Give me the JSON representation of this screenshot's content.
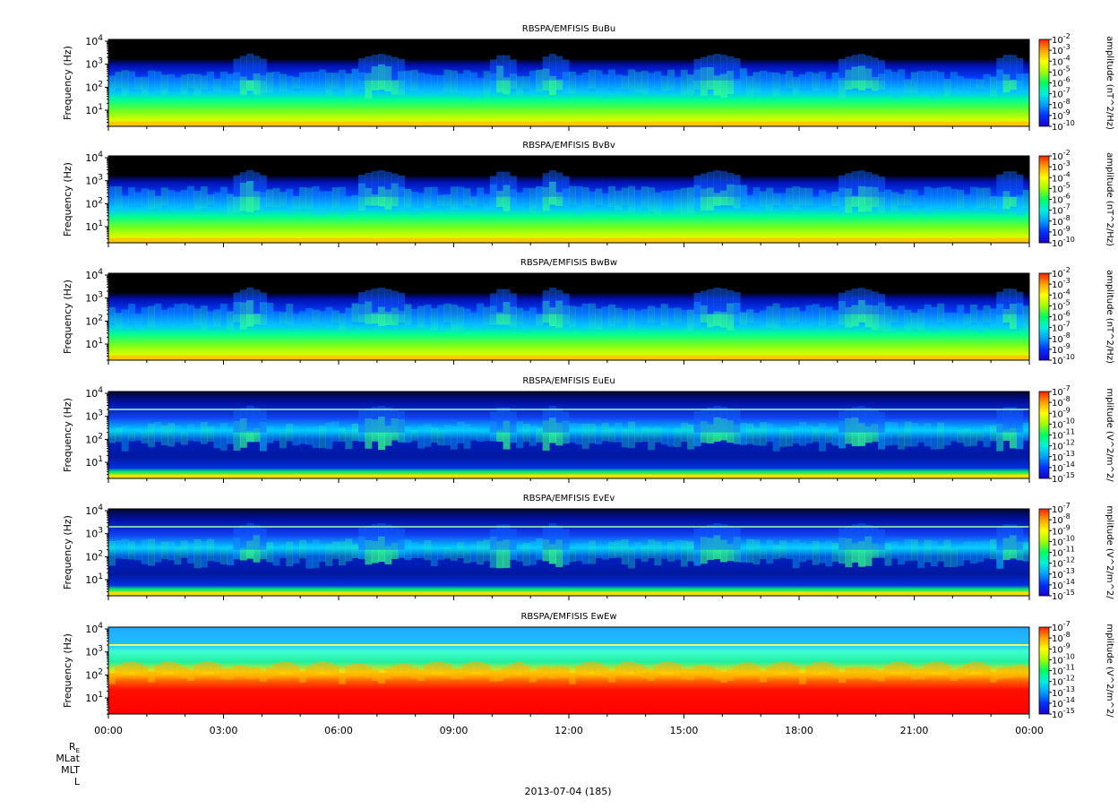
{
  "figure": {
    "date_label": "2013-07-04 (185)",
    "ephemeris_labels": [
      "R_E",
      "MLat",
      "MLT",
      "L"
    ],
    "time_ticks": [
      "00:00",
      "03:00",
      "06:00",
      "09:00",
      "12:00",
      "15:00",
      "18:00",
      "21:00",
      "00:00"
    ]
  },
  "colors": {
    "colormap": [
      "#1a00c8",
      "#0030ff",
      "#00a0ff",
      "#00f0e0",
      "#00ff60",
      "#a0ff00",
      "#ffff00",
      "#ffa000",
      "#ff2000"
    ],
    "background_no_data": "#000000"
  },
  "chart_data": [
    {
      "type": "heatmap",
      "title": "RBSPA/EMFISIS  BuBu",
      "ylabel": "Frequency (Hz)",
      "ylim": [
        2,
        12000
      ],
      "yscale": "log",
      "yticks": [
        10,
        100,
        1000,
        10000
      ],
      "ytick_labels": [
        "10^1",
        "10^2",
        "10^3",
        "10^4"
      ],
      "xlim": [
        "00:00",
        "24:00"
      ],
      "colorbar": {
        "label": "amplitude (nT^2/Hz)",
        "range": [
          -10,
          -2
        ],
        "tick_labels": [
          "10^-2",
          "10^-3",
          "10^-4",
          "10^-5",
          "10^-6",
          "10^-7",
          "10^-8",
          "10^-9",
          "10^-10"
        ]
      }
    },
    {
      "type": "heatmap",
      "title": "RBSPA/EMFISIS  BvBv",
      "ylabel": "Frequency (Hz)",
      "ylim": [
        2,
        12000
      ],
      "yscale": "log",
      "yticks": [
        10,
        100,
        1000,
        10000
      ],
      "ytick_labels": [
        "10^1",
        "10^2",
        "10^3",
        "10^4"
      ],
      "xlim": [
        "00:00",
        "24:00"
      ],
      "colorbar": {
        "label": "amplitude (nT^2/Hz)",
        "range": [
          -10,
          -2
        ],
        "tick_labels": [
          "10^-2",
          "10^-3",
          "10^-4",
          "10^-5",
          "10^-6",
          "10^-7",
          "10^-8",
          "10^-9",
          "10^-10"
        ]
      }
    },
    {
      "type": "heatmap",
      "title": "RBSPA/EMFISIS  BwBw",
      "ylabel": "Frequency (Hz)",
      "ylim": [
        2,
        12000
      ],
      "yscale": "log",
      "yticks": [
        10,
        100,
        1000,
        10000
      ],
      "ytick_labels": [
        "10^1",
        "10^2",
        "10^3",
        "10^4"
      ],
      "xlim": [
        "00:00",
        "24:00"
      ],
      "colorbar": {
        "label": "amplitude (nT^2/Hz)",
        "range": [
          -10,
          -2
        ],
        "tick_labels": [
          "10^-2",
          "10^-3",
          "10^-4",
          "10^-5",
          "10^-6",
          "10^-7",
          "10^-8",
          "10^-9",
          "10^-10"
        ]
      }
    },
    {
      "type": "heatmap",
      "title": "RBSPA/EMFISIS  EuEu",
      "ylabel": "Frequency (Hz)",
      "ylim": [
        2,
        12000
      ],
      "yscale": "log",
      "yticks": [
        10,
        100,
        1000,
        10000
      ],
      "ytick_labels": [
        "10^1",
        "10^2",
        "10^3",
        "10^4"
      ],
      "xlim": [
        "00:00",
        "24:00"
      ],
      "colorbar": {
        "label": "mplitude (V^2/m^2/",
        "range": [
          -15,
          -7
        ],
        "tick_labels": [
          "10^-7",
          "10^-8",
          "10^-9",
          "10^-10",
          "10^-11",
          "10^-12",
          "10^-13",
          "10^-14",
          "10^-15"
        ]
      }
    },
    {
      "type": "heatmap",
      "title": "RBSPA/EMFISIS  EvEv",
      "ylabel": "Frequency (Hz)",
      "ylim": [
        2,
        12000
      ],
      "yscale": "log",
      "yticks": [
        10,
        100,
        1000,
        10000
      ],
      "ytick_labels": [
        "10^1",
        "10^2",
        "10^3",
        "10^4"
      ],
      "xlim": [
        "00:00",
        "24:00"
      ],
      "colorbar": {
        "label": "mplitude (V^2/m^2/",
        "range": [
          -15,
          -7
        ],
        "tick_labels": [
          "10^-7",
          "10^-8",
          "10^-9",
          "10^-10",
          "10^-11",
          "10^-12",
          "10^-13",
          "10^-14",
          "10^-15"
        ]
      }
    },
    {
      "type": "heatmap",
      "title": "RBSPA/EMFISIS  EwEw",
      "ylabel": "Frequency (Hz)",
      "ylim": [
        2,
        12000
      ],
      "yscale": "log",
      "yticks": [
        10,
        100,
        1000,
        10000
      ],
      "ytick_labels": [
        "10^1",
        "10^2",
        "10^3",
        "10^4"
      ],
      "xlim": [
        "00:00",
        "24:00"
      ],
      "colorbar": {
        "label": "mplitude (V^2/m^2/",
        "range": [
          -15,
          -7
        ],
        "tick_labels": [
          "10^-7",
          "10^-8",
          "10^-9",
          "10^-10",
          "10^-11",
          "10^-12",
          "10^-13",
          "10^-14",
          "10^-15"
        ]
      }
    }
  ]
}
